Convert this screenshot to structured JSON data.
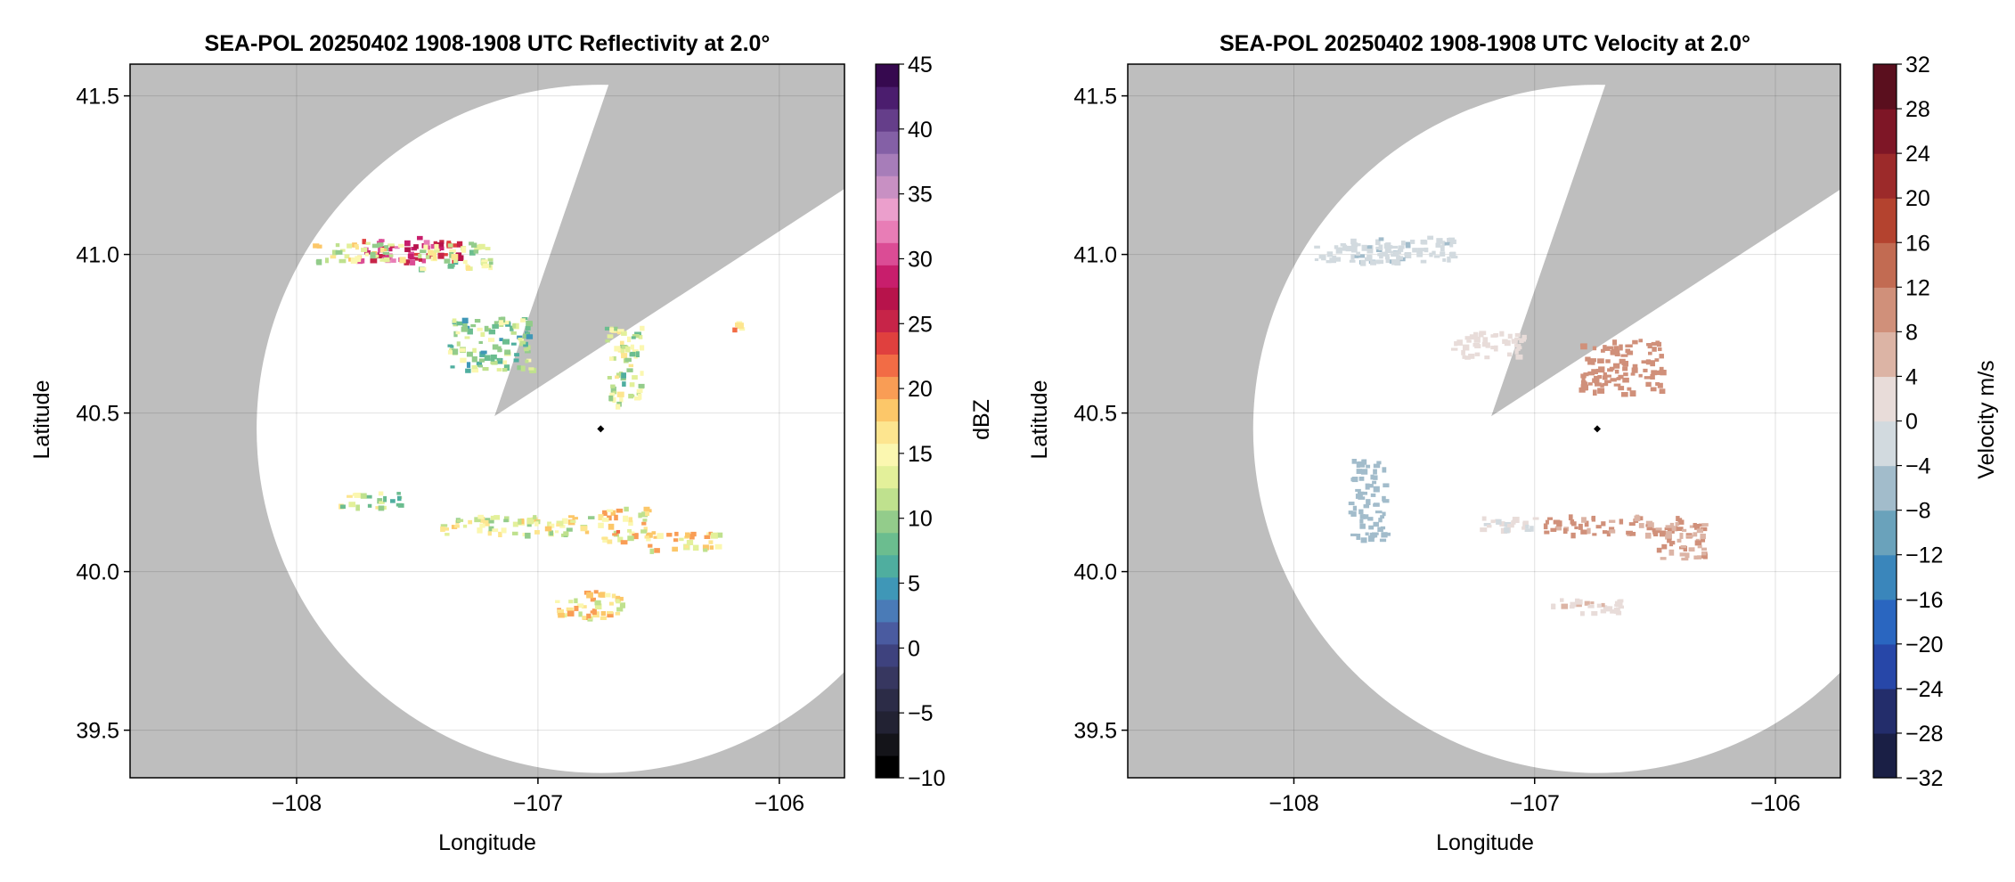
{
  "chart_data": [
    {
      "type": "heatmap",
      "title": "SEA-POL 20250402 1908-1908 UTC Reflectivity at 2.0°",
      "xlabel": "Longitude",
      "ylabel": "Latitude",
      "xlim": [
        -108.69,
        -105.73
      ],
      "ylim": [
        39.35,
        41.6
      ],
      "x_ticks": [
        -108,
        -107,
        -106
      ],
      "x_tick_labels": [
        "−108",
        "−107",
        "−106"
      ],
      "y_ticks": [
        39.5,
        40.0,
        40.5,
        41.0,
        41.5
      ],
      "y_tick_labels": [
        "39.5",
        "40.0",
        "40.5",
        "41.0",
        "41.5"
      ],
      "grid": true,
      "background_color": "#bebebe",
      "radar_site": {
        "lon": -106.74,
        "lat": 40.45
      },
      "coverage": {
        "center_lon": -106.74,
        "center_lat": 40.45,
        "radius_deg_lat": 1.085,
        "blocked_sector_deg": [
          19,
          57
        ],
        "blocked_apex": {
          "lon": -107.18,
          "lat": 40.49
        }
      },
      "colorbar": {
        "label": "dBZ",
        "range": [
          -10,
          45
        ],
        "ticks": [
          -10,
          -5,
          0,
          5,
          10,
          15,
          20,
          25,
          30,
          35,
          40,
          45
        ],
        "tick_labels": [
          "−10",
          "−5",
          "0",
          "5",
          "10",
          "15",
          "20",
          "25",
          "30",
          "35",
          "40",
          "45"
        ],
        "colors": [
          "#000000",
          "#141419",
          "#222233",
          "#2c2c47",
          "#373760",
          "#3e427e",
          "#4a5ba0",
          "#4a7bb7",
          "#3f97b7",
          "#4fae9f",
          "#6bbd8f",
          "#93cc8b",
          "#bfe18e",
          "#e3f09a",
          "#fbf7b0",
          "#fde58f",
          "#fcc769",
          "#f99d55",
          "#f26c45",
          "#e0403e",
          "#c72448",
          "#b7134b",
          "#c81e6c",
          "#db4c95",
          "#e87db6",
          "#eb9fcc",
          "#c890c3",
          "#a77db9",
          "#8460a6",
          "#653e8a",
          "#4b1d6e",
          "#36094f"
        ]
      },
      "echoes": [
        {
          "lon": -107.55,
          "lat": 41.02,
          "dbz": 28
        },
        {
          "lon": -107.75,
          "lat": 41.01,
          "dbz": 14
        },
        {
          "lon": -107.35,
          "lat": 41.0,
          "dbz": 12
        },
        {
          "lon": -107.2,
          "lat": 40.72,
          "dbz": 10
        },
        {
          "lon": -106.65,
          "lat": 40.65,
          "dbz": 12
        },
        {
          "lon": -107.7,
          "lat": 40.23,
          "dbz": 12
        },
        {
          "lon": -107.1,
          "lat": 40.15,
          "dbz": 14
        },
        {
          "lon": -106.65,
          "lat": 40.15,
          "dbz": 16
        },
        {
          "lon": -106.4,
          "lat": 40.1,
          "dbz": 16
        },
        {
          "lon": -106.8,
          "lat": 39.9,
          "dbz": 16
        },
        {
          "lon": -106.18,
          "lat": 40.78,
          "dbz": 18
        }
      ]
    },
    {
      "type": "heatmap",
      "title": "SEA-POL 20250402 1908-1908 UTC Velocity at 2.0°",
      "xlabel": "Longitude",
      "ylabel": "Latitude",
      "xlim": [
        -108.69,
        -105.73
      ],
      "ylim": [
        39.35,
        41.6
      ],
      "x_ticks": [
        -108,
        -107,
        -106
      ],
      "x_tick_labels": [
        "−108",
        "−107",
        "−106"
      ],
      "y_ticks": [
        39.5,
        40.0,
        40.5,
        41.0,
        41.5
      ],
      "y_tick_labels": [
        "39.5",
        "40.0",
        "40.5",
        "41.0",
        "41.5"
      ],
      "grid": true,
      "background_color": "#bebebe",
      "radar_site": {
        "lon": -106.74,
        "lat": 40.45
      },
      "coverage": {
        "center_lon": -106.74,
        "center_lat": 40.45,
        "radius_deg_lat": 1.085,
        "blocked_sector_deg": [
          19,
          57
        ],
        "blocked_apex": {
          "lon": -107.18,
          "lat": 40.49
        }
      },
      "colorbar": {
        "label": "Velocity m/s",
        "range": [
          -32,
          32
        ],
        "ticks": [
          -32,
          -28,
          -24,
          -20,
          -16,
          -12,
          -8,
          -4,
          0,
          4,
          8,
          12,
          16,
          20,
          24,
          28,
          32
        ],
        "tick_labels": [
          "−32",
          "−28",
          "−24",
          "−20",
          "−16",
          "−12",
          "−8",
          "−4",
          "0",
          "4",
          "8",
          "12",
          "16",
          "20",
          "24",
          "28",
          "32"
        ],
        "colors": [
          "#1a1f45",
          "#232d6b",
          "#2747a8",
          "#2a66c0",
          "#3a86bb",
          "#6aa2bb",
          "#a2bccb",
          "#d2dadf",
          "#e8dcd9",
          "#dcb4a5",
          "#d0907a",
          "#c26b52",
          "#b4432f",
          "#9c2a2a",
          "#7e1626",
          "#5a0f1e"
        ]
      },
      "echoes": [
        {
          "lon": -107.55,
          "lat": 41.02,
          "vel": -3
        },
        {
          "lon": -107.75,
          "lat": 41.01,
          "vel": -2
        },
        {
          "lon": -107.2,
          "lat": 40.72,
          "vel": 2
        },
        {
          "lon": -106.65,
          "lat": 40.65,
          "vel": 10
        },
        {
          "lon": -107.7,
          "lat": 40.23,
          "vel": -6
        },
        {
          "lon": -107.1,
          "lat": 40.15,
          "vel": 1
        },
        {
          "lon": -106.65,
          "lat": 40.15,
          "vel": 9
        },
        {
          "lon": -106.4,
          "lat": 40.1,
          "vel": 8
        },
        {
          "lon": -106.8,
          "lat": 39.9,
          "vel": 3
        }
      ]
    }
  ]
}
